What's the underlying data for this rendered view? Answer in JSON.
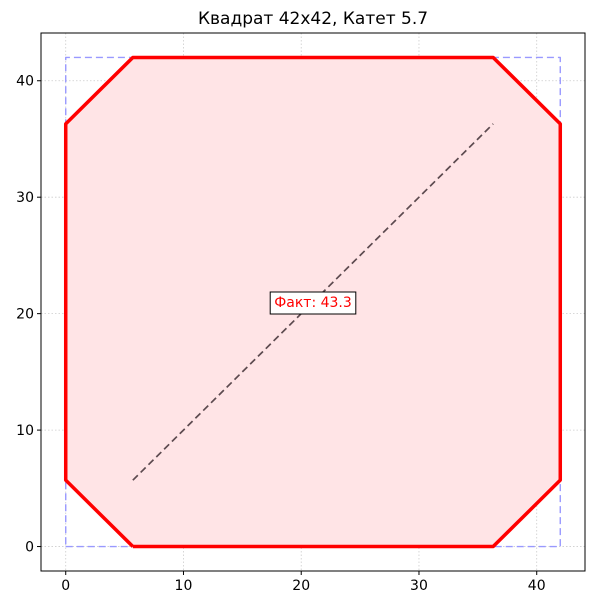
{
  "chart_data": {
    "type": "line",
    "title": "Квадрат 42x42, Катет 5.7",
    "xlabel": "",
    "ylabel": "",
    "xlim": [
      -2.1,
      44.1
    ],
    "ylim": [
      -2.1,
      44.1
    ],
    "xticks": [
      0,
      10,
      20,
      30,
      40
    ],
    "yticks": [
      0,
      10,
      20,
      30,
      40
    ],
    "grid": true,
    "series": [
      {
        "role": "square-outline",
        "style": "dashed",
        "color": "#9999ff",
        "x": [
          0,
          42,
          42,
          0,
          0
        ],
        "y": [
          0,
          0,
          42,
          42,
          0
        ]
      },
      {
        "role": "octagon",
        "style": "solid",
        "color": "#ff0000",
        "fill": "#ffe4e6",
        "x": [
          5.7,
          36.3,
          42,
          42,
          36.3,
          5.7,
          0,
          0,
          5.7
        ],
        "y": [
          0,
          0,
          5.7,
          36.3,
          42,
          42,
          36.3,
          5.7,
          0
        ]
      },
      {
        "role": "diagonal",
        "style": "dashed",
        "color": "#5c4a4f",
        "x": [
          5.7,
          36.3
        ],
        "y": [
          5.7,
          36.3
        ]
      }
    ],
    "annotations": [
      {
        "text": "Факт: 43.3",
        "x": 21,
        "y": 21,
        "color": "#ff0000"
      }
    ]
  }
}
